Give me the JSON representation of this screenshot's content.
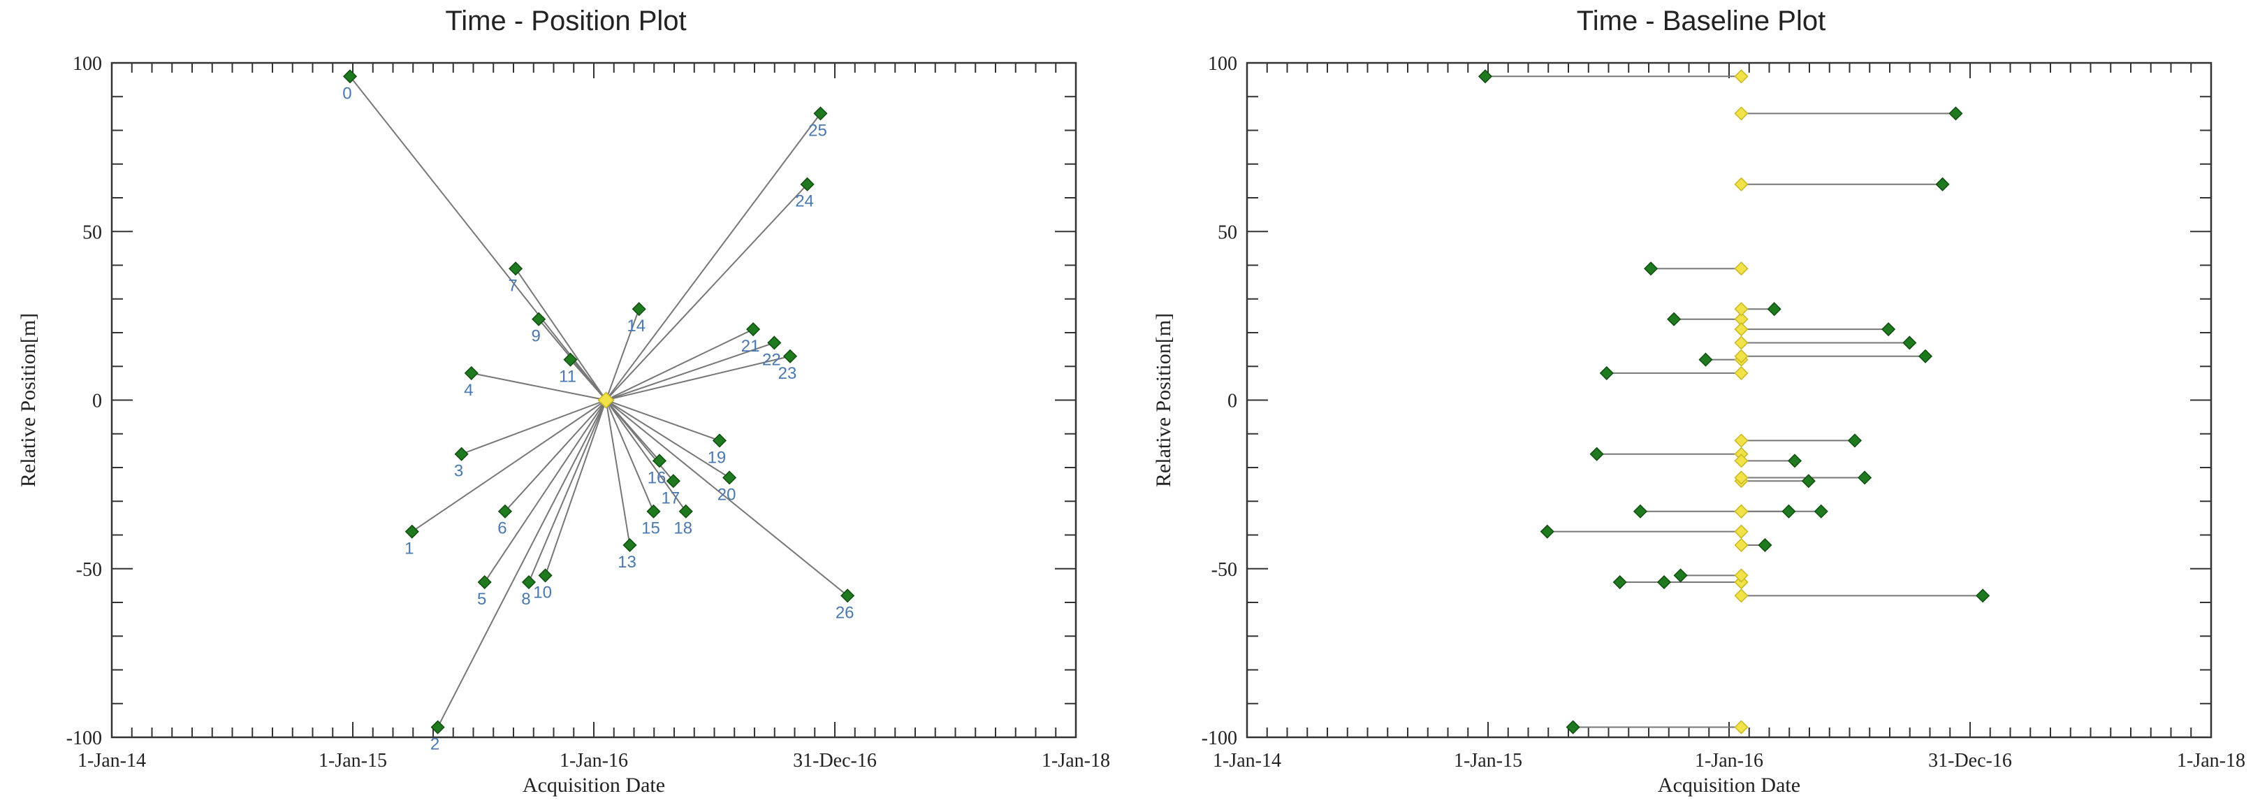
{
  "chart_data": [
    {
      "type": "scatter",
      "title": "Time - Position Plot",
      "xlabel": "Acquisition Date",
      "ylabel": "Relative Position[m]",
      "x_ticks": [
        "1-Jan-14",
        "1-Jan-15",
        "1-Jan-16",
        "31-Dec-16",
        "1-Jan-18"
      ],
      "y_ticks": [
        "100",
        "50",
        "0",
        "-50",
        "-100"
      ],
      "ylim": [
        -100,
        100
      ],
      "xlim": [
        "2014-01-01",
        "2018-01-01"
      ],
      "grid": false,
      "master": {
        "date": "2016-01-20",
        "position": 0
      },
      "colors": {
        "slave": "#1f7a1f",
        "master": "#f2e24a",
        "line": "#777777",
        "label": "#4a78b0"
      },
      "points": [
        {
          "label": "0",
          "date": "2014-12-28",
          "position": 96
        },
        {
          "label": "1",
          "date": "2015-04-01",
          "position": -39
        },
        {
          "label": "2",
          "date": "2015-05-10",
          "position": -97
        },
        {
          "label": "3",
          "date": "2015-06-15",
          "position": -16
        },
        {
          "label": "4",
          "date": "2015-06-30",
          "position": 8
        },
        {
          "label": "5",
          "date": "2015-07-20",
          "position": -54
        },
        {
          "label": "6",
          "date": "2015-08-20",
          "position": -33
        },
        {
          "label": "7",
          "date": "2015-09-05",
          "position": 39
        },
        {
          "label": "8",
          "date": "2015-09-25",
          "position": -54
        },
        {
          "label": "9",
          "date": "2015-10-10",
          "position": 24
        },
        {
          "label": "10",
          "date": "2015-10-20",
          "position": -52
        },
        {
          "label": "11",
          "date": "2015-11-27",
          "position": 12
        },
        {
          "label": "13",
          "date": "2016-02-25",
          "position": -43
        },
        {
          "label": "14",
          "date": "2016-03-10",
          "position": 27
        },
        {
          "label": "15",
          "date": "2016-04-01",
          "position": -33
        },
        {
          "label": "16",
          "date": "2016-04-10",
          "position": -18
        },
        {
          "label": "17",
          "date": "2016-05-01",
          "position": -24
        },
        {
          "label": "18",
          "date": "2016-05-20",
          "position": -33
        },
        {
          "label": "19",
          "date": "2016-07-10",
          "position": -12
        },
        {
          "label": "20",
          "date": "2016-07-25",
          "position": -23
        },
        {
          "label": "21",
          "date": "2016-08-30",
          "position": 21
        },
        {
          "label": "22",
          "date": "2016-10-01",
          "position": 17
        },
        {
          "label": "23",
          "date": "2016-10-25",
          "position": 13
        },
        {
          "label": "24",
          "date": "2016-11-20",
          "position": 64
        },
        {
          "label": "25",
          "date": "2016-12-10",
          "position": 85
        },
        {
          "label": "26",
          "date": "2017-01-20",
          "position": -58
        }
      ]
    },
    {
      "type": "scatter",
      "title": "Time - Baseline Plot",
      "xlabel": "Acquisition Date",
      "ylabel": "Relative Position[m]",
      "x_ticks": [
        "1-Jan-14",
        "1-Jan-15",
        "1-Jan-16",
        "31-Dec-16",
        "1-Jan-18"
      ],
      "y_ticks": [
        "100",
        "50",
        "0",
        "-50",
        "-100"
      ],
      "ylim": [
        -100,
        100
      ],
      "xlim": [
        "2014-01-01",
        "2018-01-01"
      ],
      "grid": false,
      "master_date": "2016-01-20",
      "colors": {
        "slave": "#1f7a1f",
        "master": "#f2e24a",
        "line": "#777777"
      },
      "note": "each slave point connected horizontally to the master acquisition date at the same relative position"
    }
  ]
}
